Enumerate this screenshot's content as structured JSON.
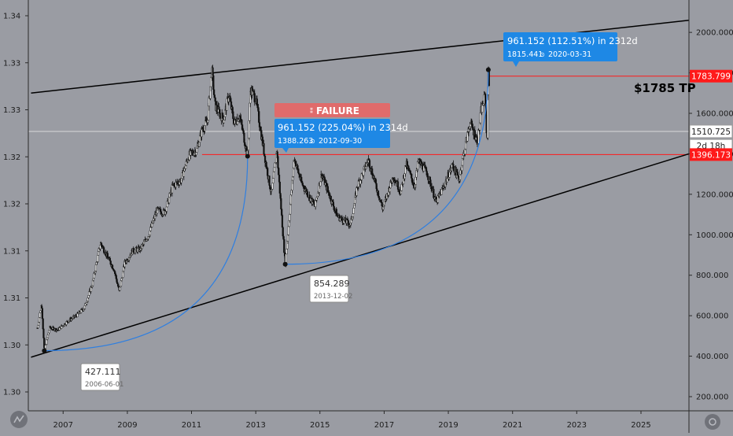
{
  "chart_data": {
    "type": "candlestick",
    "title": "",
    "x_axis": {
      "type": "date",
      "ticks": [
        "2007",
        "2009",
        "2011",
        "2013",
        "2015",
        "2017",
        "2019",
        "2021",
        "2023",
        "2025"
      ],
      "range": [
        "2005-12-01",
        "2026-07-01"
      ]
    },
    "right_axis": {
      "ticks": [
        "200.000",
        "400.000",
        "600.000",
        "800.000",
        "1000.000",
        "1200.000",
        "1400.000",
        "1600.000",
        "1800.000",
        "2000.000"
      ],
      "range": [
        130,
        2160
      ]
    },
    "left_axis": {
      "ticks": [
        "1.30",
        "1.30",
        "1.31",
        "1.31",
        "1.32",
        "1.32",
        "1.33",
        "1.33",
        "1.34"
      ]
    },
    "price_path": [
      [
        "2006-03-15",
        540
      ],
      [
        "2006-05-01",
        660
      ],
      [
        "2006-06-01",
        427.111
      ],
      [
        "2006-08-01",
        540
      ],
      [
        "2006-11-01",
        530
      ],
      [
        "2007-03-01",
        575
      ],
      [
        "2007-06-01",
        600
      ],
      [
        "2007-09-01",
        640
      ],
      [
        "2007-12-01",
        760
      ],
      [
        "2008-03-01",
        960
      ],
      [
        "2008-06-01",
        880
      ],
      [
        "2008-08-01",
        830
      ],
      [
        "2008-10-01",
        720
      ],
      [
        "2008-12-01",
        860
      ],
      [
        "2009-03-01",
        920
      ],
      [
        "2009-06-01",
        930
      ],
      [
        "2009-09-01",
        1000
      ],
      [
        "2009-12-01",
        1120
      ],
      [
        "2010-03-01",
        1110
      ],
      [
        "2010-06-01",
        1240
      ],
      [
        "2010-09-01",
        1270
      ],
      [
        "2010-12-01",
        1390
      ],
      [
        "2011-03-01",
        1420
      ],
      [
        "2011-05-01",
        1520
      ],
      [
        "2011-07-01",
        1560
      ],
      [
        "2011-08-20",
        1820
      ],
      [
        "2011-09-25",
        1640
      ],
      [
        "2011-12-30",
        1570
      ],
      [
        "2012-03-01",
        1690
      ],
      [
        "2012-05-01",
        1550
      ],
      [
        "2012-07-01",
        1590
      ],
      [
        "2012-09-30",
        1388.263
      ],
      [
        "2012-11-01",
        1720
      ],
      [
        "2013-01-01",
        1670
      ],
      [
        "2013-04-15",
        1380
      ],
      [
        "2013-06-28",
        1200
      ],
      [
        "2013-08-28",
        1420
      ],
      [
        "2013-12-02",
        854.289
      ],
      [
        "2014-03-15",
        1380
      ],
      [
        "2014-06-01",
        1260
      ],
      [
        "2014-11-05",
        1140
      ],
      [
        "2015-01-20",
        1300
      ],
      [
        "2015-07-20",
        1090
      ],
      [
        "2015-12-17",
        1050
      ],
      [
        "2016-03-01",
        1240
      ],
      [
        "2016-07-06",
        1370
      ],
      [
        "2016-12-15",
        1130
      ],
      [
        "2017-04-15",
        1290
      ],
      [
        "2017-07-10",
        1210
      ],
      [
        "2017-09-08",
        1350
      ],
      [
        "2017-12-12",
        1240
      ],
      [
        "2018-01-25",
        1365
      ],
      [
        "2018-05-01",
        1310
      ],
      [
        "2018-08-16",
        1160
      ],
      [
        "2018-11-01",
        1230
      ],
      [
        "2019-02-20",
        1345
      ],
      [
        "2019-05-01",
        1270
      ],
      [
        "2019-06-30",
        1410
      ],
      [
        "2019-09-04",
        1555
      ],
      [
        "2019-12-01",
        1460
      ],
      [
        "2020-01-08",
        1610
      ],
      [
        "2020-02-24",
        1690
      ],
      [
        "2020-03-16",
        1450
      ],
      [
        "2020-03-31",
        1815.441
      ],
      [
        "2020-04-10",
        1740
      ]
    ],
    "channel_lines": [
      {
        "name": "upper",
        "from": [
          "2006-01-01",
          1700
        ],
        "to": [
          "2026-07-01",
          2060
        ]
      },
      {
        "name": "lower",
        "from": [
          "2006-01-01",
          395
        ],
        "to": [
          "2026-07-01",
          1400
        ]
      }
    ],
    "horizontal_lines": [
      {
        "value": 1396.173,
        "from": "2011-05-01",
        "color": "#ff1a1a"
      },
      {
        "value": 1783.799,
        "from": "2020-03-31",
        "color": "#ff1a1a"
      },
      {
        "value": 1510.725,
        "from": "2005-12-01",
        "color": "#d8d8d8"
      }
    ],
    "arcs": [
      {
        "from": [
          "2006-06-01",
          427.111
        ],
        "to": [
          "2012-09-30",
          1388.263
        ]
      },
      {
        "from": [
          "2013-12-02",
          854.289
        ],
        "to": [
          "2020-03-31",
          1815.441
        ]
      }
    ],
    "points": [
      {
        "date": "2006-06-01",
        "value": 427.111
      },
      {
        "date": "2012-09-30",
        "value": 1388.263
      },
      {
        "date": "2013-12-02",
        "value": 854.289
      },
      {
        "date": "2020-03-31",
        "value": 1815.441
      }
    ],
    "annotations": {
      "low1": {
        "value": "427.111",
        "date": "2006-06-01"
      },
      "low2": {
        "value": "854.289",
        "date": "2013-12-02"
      },
      "box1": {
        "main": "961.152 (225.04%) in 2314d",
        "value": "1388.263",
        "date": "2012-09-30"
      },
      "box2": {
        "main": "961.152 (112.51%) in 2312d",
        "value": "1815.441",
        "date": "2020-03-31"
      },
      "failure": "FAILURE",
      "tp": "$1785 TP"
    },
    "price_labels": [
      {
        "text": "1783.799",
        "value": 1783.799,
        "style": "red"
      },
      {
        "text": "1510.725",
        "value": 1510.725,
        "style": "white"
      },
      {
        "text": "2d 18h",
        "value": 1440,
        "style": "white"
      },
      {
        "text": "1396.173",
        "value": 1396.173,
        "style": "red"
      }
    ],
    "colors": {
      "background": "#9a9ca3",
      "candle": "#111111",
      "arc": "#2f7fe0",
      "label_blue": "#1e88e5",
      "label_red": "#ff1a1a",
      "failure": "#e06b6b"
    }
  }
}
